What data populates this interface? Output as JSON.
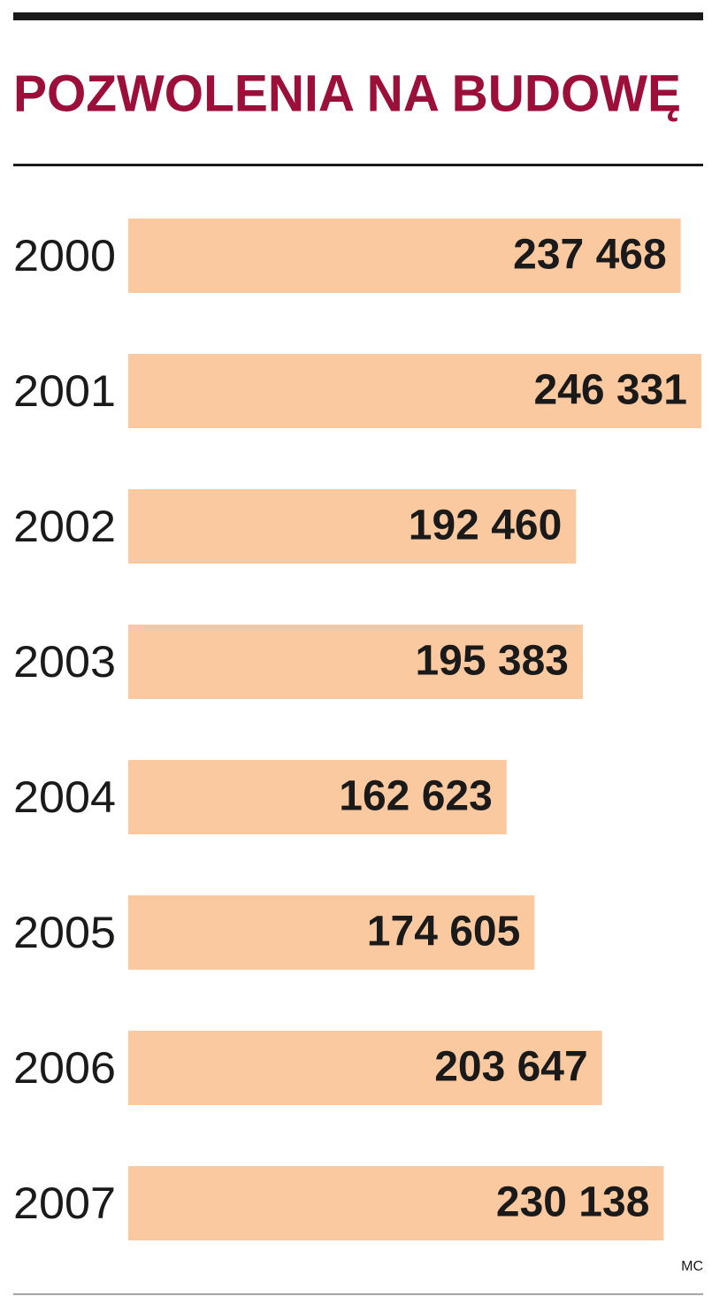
{
  "chart_data": {
    "type": "bar",
    "orientation": "horizontal",
    "title": "POZWOLENIA NA BUDOWĘ",
    "categories": [
      "2000",
      "2001",
      "2002",
      "2003",
      "2004",
      "2005",
      "2006",
      "2007"
    ],
    "values": [
      237468,
      246331,
      192460,
      195383,
      162623,
      174605,
      203647,
      230138
    ],
    "value_labels": [
      "237 468",
      "246 331",
      "192 460",
      "195 383",
      "162 623",
      "174 605",
      "203 647",
      "230 138"
    ],
    "color": "#fbc9a0",
    "title_color": "#9b0f3a",
    "credit": "MC"
  }
}
